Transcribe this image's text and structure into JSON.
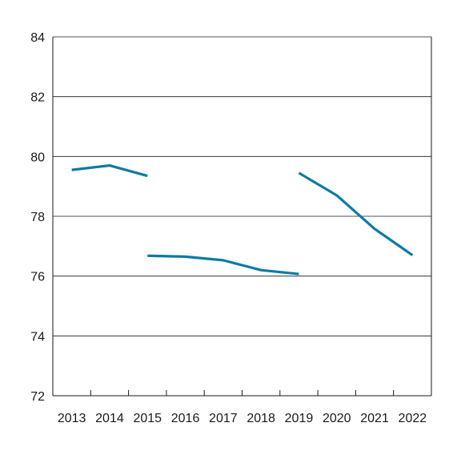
{
  "chart_data": {
    "type": "line",
    "title": "",
    "xlabel": "",
    "ylabel": "",
    "ylim": [
      72,
      84
    ],
    "yticks": [
      "72",
      "74",
      "76",
      "78",
      "80",
      "82",
      "84"
    ],
    "categories": [
      "2013",
      "2014",
      "2015",
      "2016",
      "2017",
      "2018",
      "2019",
      "2020",
      "2021",
      "2022"
    ],
    "grid": true,
    "color": "#0e7aa6",
    "series": [
      {
        "x": [
          2013,
          2014,
          2015
        ],
        "values": [
          79.55,
          79.7,
          79.35
        ]
      },
      {
        "x": [
          2015,
          2016,
          2017,
          2018,
          2019
        ],
        "values": [
          76.68,
          76.65,
          76.53,
          76.2,
          76.07
        ]
      },
      {
        "x": [
          2019,
          2020,
          2021,
          2022
        ],
        "values": [
          79.45,
          78.7,
          77.58,
          76.7
        ]
      }
    ]
  }
}
